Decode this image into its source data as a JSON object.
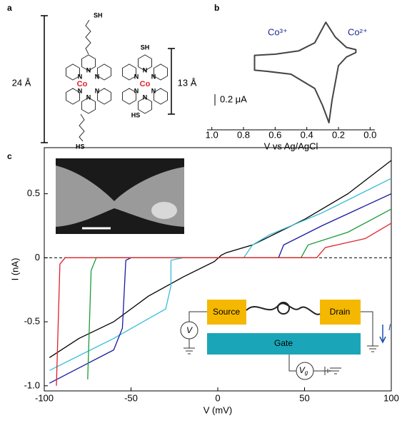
{
  "panel_a": {
    "label": "a",
    "thiol": "SH",
    "thiol_rev": "HS",
    "nitrogen": "N",
    "metal": "Co",
    "long_length": "24 Å",
    "short_length": "13 Å"
  },
  "inset": {
    "source": "Source",
    "drain": "Drain",
    "gate": "Gate",
    "voltmeter": "V",
    "gate_voltmeter": "V",
    "gate_voltmeter_sub": "g",
    "current": "I"
  },
  "panel_labels": [
    "b",
    "c"
  ],
  "chart_data": [
    {
      "type": "cv",
      "xlabel": "V vs Ag/AgCl",
      "xlim": [
        1.03,
        -0.03
      ],
      "xticks": [
        {
          "value": 1,
          "label": "1.0"
        },
        0.8,
        0.6,
        0.4,
        0.2,
        {
          "value": 0,
          "label": "0.0"
        }
      ],
      "annotations": [
        "Co³⁺",
        "Co²⁺"
      ],
      "scale_bar": {
        "value": 0.2,
        "label": "0.2 μA"
      },
      "color": "#444444",
      "x": [
        0.73,
        0.6,
        0.45,
        0.35,
        0.28,
        0.22,
        0.15,
        0.09,
        0.09,
        0.15,
        0.2,
        0.24,
        0.26,
        0.3,
        0.35,
        0.5,
        0.65,
        0.73
      ],
      "values": [
        0.28,
        0.3,
        0.36,
        0.5,
        0.86,
        0.6,
        0.42,
        0.38,
        0.33,
        0.25,
        0.1,
        -0.5,
        -0.9,
        -0.6,
        -0.3,
        -0.05,
        0,
        0.02
      ]
    },
    {
      "type": "line",
      "xlabel": "V (mV)",
      "ylabel": "I (nA)",
      "xlim": [
        -100,
        100
      ],
      "ylim": [
        -1.04,
        0.86
      ],
      "xticks": [
        -100,
        -50,
        0,
        50,
        100
      ],
      "yticks": [
        {
          "value": -1,
          "label": "-1.0"
        },
        -0.5,
        0,
        0.5
      ],
      "zero_line": true,
      "series": [
        {
          "color": "#000000",
          "x": [
            -97,
            -80,
            -60,
            -40,
            -20,
            -2,
            2,
            5,
            20,
            50,
            75,
            100
          ],
          "values": [
            -0.78,
            -0.63,
            -0.5,
            -0.3,
            -0.15,
            -0.03,
            0.02,
            0.04,
            0.1,
            0.3,
            0.5,
            0.76
          ]
        },
        {
          "color": "#38bcd6",
          "x": [
            -97,
            -60,
            -30,
            -27,
            -27,
            -20,
            15,
            20,
            30,
            60,
            100
          ],
          "values": [
            -0.88,
            -0.63,
            -0.4,
            -0.22,
            -0.02,
            0,
            0,
            0.1,
            0.18,
            0.35,
            0.62
          ]
        },
        {
          "color": "#1a1aa0",
          "x": [
            -97,
            -60,
            -55,
            -53,
            -50,
            35,
            38,
            60,
            100
          ],
          "values": [
            -0.98,
            -0.72,
            -0.55,
            -0.02,
            0,
            0,
            0.1,
            0.25,
            0.5
          ]
        },
        {
          "color": "#1a9a3a",
          "x": [
            -75,
            -73,
            -70,
            48,
            52,
            75,
            100
          ],
          "values": [
            -0.95,
            -0.1,
            0,
            0,
            0.1,
            0.2,
            0.38
          ]
        },
        {
          "color": "#e0202a",
          "x": [
            -93,
            -91,
            -88,
            57,
            62,
            85,
            100
          ],
          "values": [
            -1,
            -0.05,
            0,
            0,
            0.08,
            0.15,
            0.27
          ]
        }
      ]
    }
  ]
}
